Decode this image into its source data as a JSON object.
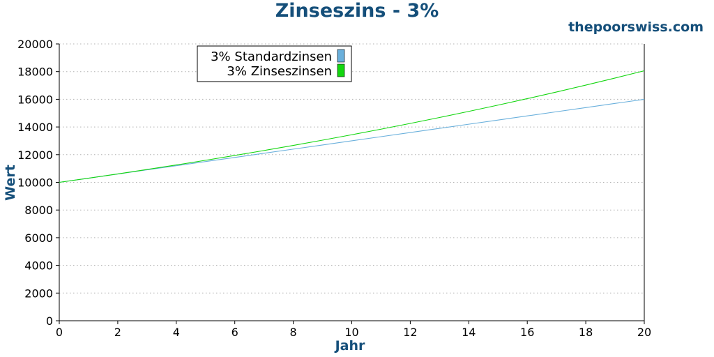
{
  "colors": {
    "title": "#154f7a",
    "standard": "#6ab0dc",
    "compound": "#13d60f",
    "grid": "#b0b0b0",
    "axis": "#000000"
  },
  "chart_data": {
    "type": "line",
    "title": "Zinseszins - 3%",
    "brand": "thepoorswiss.com",
    "xlabel": "Jahr",
    "ylabel": "Wert",
    "xlim": [
      0,
      20
    ],
    "ylim": [
      0,
      20000
    ],
    "xticks": [
      0,
      2,
      4,
      6,
      8,
      10,
      12,
      14,
      16,
      18,
      20
    ],
    "yticks": [
      0,
      2000,
      4000,
      6000,
      8000,
      10000,
      12000,
      14000,
      16000,
      18000,
      20000
    ],
    "grid": "horizontal-dotted",
    "legend_position": "top-left",
    "x": [
      0,
      1,
      2,
      3,
      4,
      5,
      6,
      7,
      8,
      9,
      10,
      11,
      12,
      13,
      14,
      15,
      16,
      17,
      18,
      19,
      20
    ],
    "series": [
      {
        "name": "3% Standardzinsen",
        "values": [
          10000,
          10300,
          10600,
          10900,
          11200,
          11500,
          11800,
          12100,
          12400,
          12700,
          13000,
          13300,
          13600,
          13900,
          14200,
          14500,
          14800,
          15100,
          15400,
          15700,
          16000
        ]
      },
      {
        "name": "3% Zinseszinsen",
        "values": [
          10000,
          10300,
          10609,
          10927,
          11255,
          11593,
          11941,
          12299,
          12668,
          13048,
          13439,
          13842,
          14258,
          14685,
          15126,
          15580,
          16047,
          16528,
          17024,
          17535,
          18061
        ]
      }
    ]
  }
}
